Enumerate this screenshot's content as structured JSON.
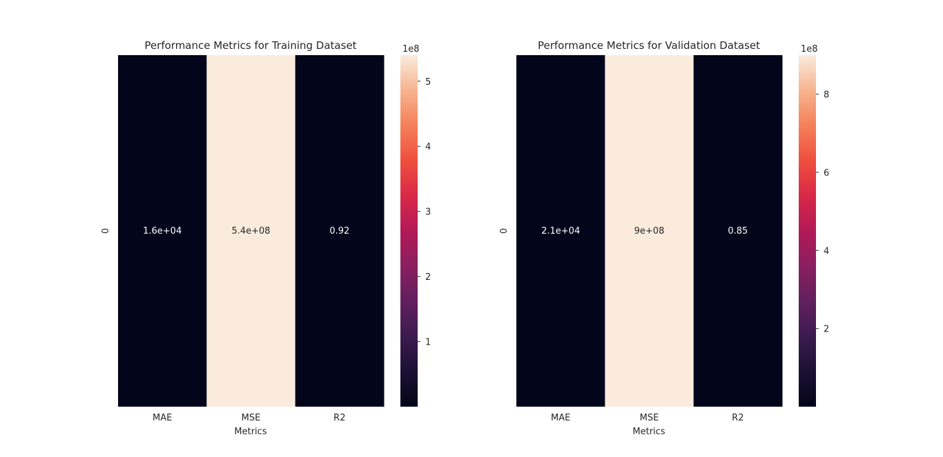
{
  "chart_data": [
    {
      "type": "heatmap",
      "title": "Performance Metrics for Training Dataset",
      "xlabel": "Metrics",
      "ylabel": "",
      "row_labels": [
        "0"
      ],
      "categories": [
        "MAE",
        "MSE",
        "R2"
      ],
      "values": [
        [
          16000,
          540000000,
          0.92
        ]
      ],
      "annotations": [
        "1.6e+04",
        "5.4e+08",
        "0.92"
      ],
      "colorbar": {
        "min": 0,
        "max": 540000000,
        "ticks": [
          1,
          2,
          3,
          4,
          5
        ],
        "multiplier_label": "1e8",
        "scale": 100000000
      }
    },
    {
      "type": "heatmap",
      "title": "Performance Metrics for Validation Dataset",
      "xlabel": "Metrics",
      "ylabel": "",
      "row_labels": [
        "0"
      ],
      "categories": [
        "MAE",
        "MSE",
        "R2"
      ],
      "values": [
        [
          21000,
          900000000,
          0.85
        ]
      ],
      "annotations": [
        "2.1e+04",
        "9e+08",
        "0.85"
      ],
      "colorbar": {
        "min": 0,
        "max": 900000000,
        "ticks": [
          2,
          4,
          6,
          8
        ],
        "multiplier_label": "1e8",
        "scale": 100000000
      }
    }
  ],
  "colormap": "rocket",
  "colors": {
    "low": "#03051a",
    "high": "#faebdd"
  }
}
